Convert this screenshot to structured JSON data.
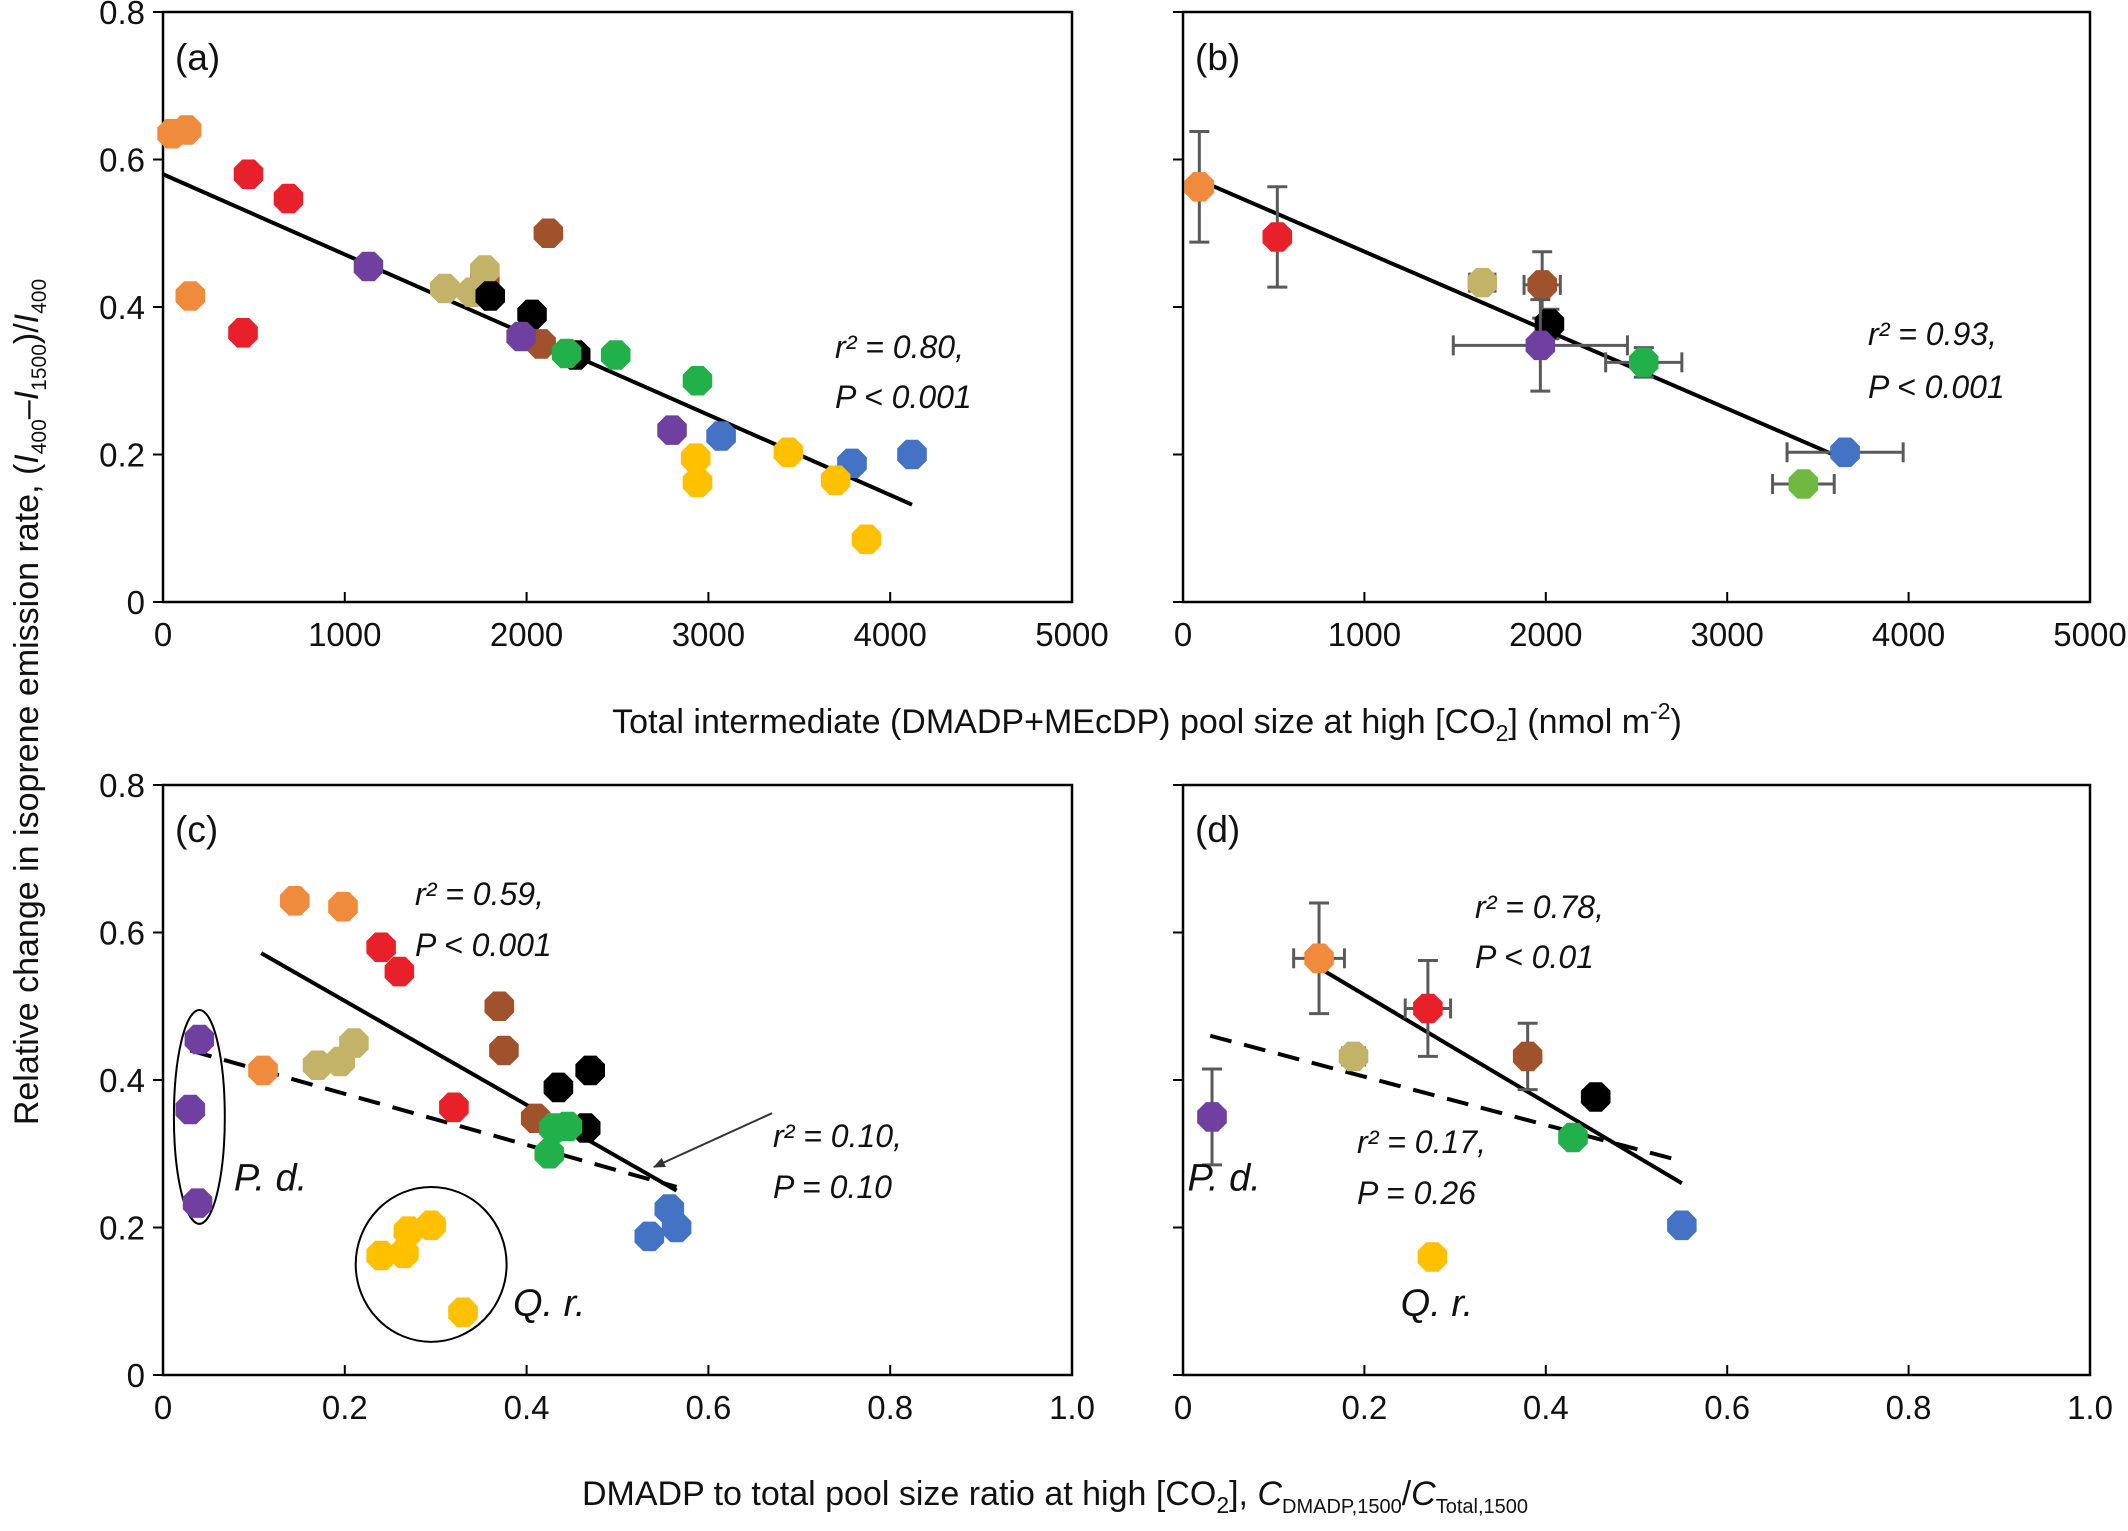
{
  "figure": {
    "ylabel": "Relative change in isoprene emission rate, (I400–I1500)/I400",
    "ylabel_parts": {
      "base": "Relative change in isoprene emission rate, (",
      "i1": "I",
      "s1": "400",
      "dash": "–",
      "i2": "I",
      "s2": "1500",
      "mid": ")/",
      "i3": "I",
      "s3": "400"
    },
    "xlabel_top": "Total intermediate (DMADP+MEcDP) pool size at high [CO2] (nmol m-2)",
    "xlabel_top_parts": {
      "a": "Total intermediate (DMADP+MEcDP) pool size at high [CO",
      "sub": "2",
      "b": "] (nmol m",
      "sup": "-2",
      "c": ")"
    },
    "xlabel_bottom": "DMADP to total pool size ratio at high [CO2], CDMADP,1500/CTotal,1500",
    "xlabel_bottom_parts": {
      "a": "DMADP to total pool size ratio at high [CO",
      "sub": "2",
      "b": "], ",
      "c1": "C",
      "s1": "DMADP,1500",
      "slash": "/",
      "c2": "C",
      "s2": "Total,1500"
    }
  },
  "colors": {
    "orange": "#F08A3C",
    "red": "#E8202A",
    "brown": "#A0522D",
    "olive": "#C2B368",
    "black": "#000000",
    "purple": "#7040A0",
    "green": "#22B04A",
    "lime": "#70B840",
    "blue": "#4472C4",
    "yellow": "#FFC000",
    "errorbar": "#5a5a5a"
  },
  "chart_data": [
    {
      "panel": "(a)",
      "type": "scatter",
      "xlim": [
        0,
        5000
      ],
      "ylim": [
        0,
        0.8
      ],
      "xticks": [
        "0",
        "1000",
        "2000",
        "3000",
        "4000",
        "5000"
      ],
      "yticks": [
        "0",
        "0.2",
        "0.4",
        "0.6",
        "0.8"
      ],
      "points": [
        {
          "x": 50,
          "y": 0.635,
          "color": "orange"
        },
        {
          "x": 130,
          "y": 0.64,
          "color": "orange"
        },
        {
          "x": 150,
          "y": 0.415,
          "color": "orange"
        },
        {
          "x": 470,
          "y": 0.58,
          "color": "red"
        },
        {
          "x": 690,
          "y": 0.547,
          "color": "red"
        },
        {
          "x": 440,
          "y": 0.365,
          "color": "red"
        },
        {
          "x": 2120,
          "y": 0.5,
          "color": "brown"
        },
        {
          "x": 1770,
          "y": 0.44,
          "color": "brown"
        },
        {
          "x": 2080,
          "y": 0.35,
          "color": "brown"
        },
        {
          "x": 1550,
          "y": 0.425,
          "color": "olive"
        },
        {
          "x": 1770,
          "y": 0.45,
          "color": "olive"
        },
        {
          "x": 1700,
          "y": 0.42,
          "color": "olive"
        },
        {
          "x": 1800,
          "y": 0.415,
          "color": "black"
        },
        {
          "x": 2030,
          "y": 0.39,
          "color": "black"
        },
        {
          "x": 2270,
          "y": 0.335,
          "color": "black"
        },
        {
          "x": 1130,
          "y": 0.455,
          "color": "purple"
        },
        {
          "x": 1970,
          "y": 0.36,
          "color": "purple"
        },
        {
          "x": 2800,
          "y": 0.233,
          "color": "purple"
        },
        {
          "x": 2220,
          "y": 0.337,
          "color": "green"
        },
        {
          "x": 2490,
          "y": 0.335,
          "color": "green"
        },
        {
          "x": 2940,
          "y": 0.3,
          "color": "green"
        },
        {
          "x": 3070,
          "y": 0.225,
          "color": "blue"
        },
        {
          "x": 3790,
          "y": 0.188,
          "color": "blue"
        },
        {
          "x": 4120,
          "y": 0.2,
          "color": "blue"
        },
        {
          "x": 2930,
          "y": 0.195,
          "color": "yellow"
        },
        {
          "x": 2940,
          "y": 0.162,
          "color": "yellow"
        },
        {
          "x": 3440,
          "y": 0.203,
          "color": "yellow"
        },
        {
          "x": 3700,
          "y": 0.165,
          "color": "yellow"
        },
        {
          "x": 3870,
          "y": 0.085,
          "color": "yellow"
        }
      ],
      "fits": [
        {
          "style": "solid",
          "x": [
            0,
            4120
          ],
          "y": [
            0.58,
            0.132
          ]
        }
      ],
      "annotations": [
        {
          "line1": "r² = 0.80,",
          "line2": "P < 0.001"
        }
      ]
    },
    {
      "panel": "(b)",
      "type": "scatter",
      "xlim": [
        0,
        5000
      ],
      "ylim": [
        0,
        0.8
      ],
      "xticks": [
        "0",
        "1000",
        "2000",
        "3000",
        "4000",
        "5000"
      ],
      "points": [
        {
          "x": 90,
          "y": 0.563,
          "color": "orange",
          "xerr": 0,
          "yerr": 0.075
        },
        {
          "x": 520,
          "y": 0.495,
          "color": "red",
          "xerr": 30,
          "yerr": 0.068
        },
        {
          "x": 1980,
          "y": 0.43,
          "color": "brown",
          "xerr": 100,
          "yerr": 0.045
        },
        {
          "x": 1650,
          "y": 0.433,
          "color": "olive",
          "xerr": 70,
          "yerr": 0.01
        },
        {
          "x": 2020,
          "y": 0.377,
          "color": "black",
          "xerr": 40,
          "yerr": 0.02
        },
        {
          "x": 1970,
          "y": 0.348,
          "color": "purple",
          "xerr": 480,
          "yerr": 0.062
        },
        {
          "x": 2540,
          "y": 0.325,
          "color": "green",
          "xerr": 210,
          "yerr": 0.02
        },
        {
          "x": 3650,
          "y": 0.203,
          "color": "blue",
          "xerr": 320,
          "yerr": 0.012
        },
        {
          "x": 3420,
          "y": 0.16,
          "color": "lime",
          "xerr": 170,
          "yerr": 0.012
        }
      ],
      "fits": [
        {
          "style": "solid",
          "x": [
            90,
            3650
          ],
          "y": [
            0.572,
            0.193
          ]
        }
      ],
      "annotations": [
        {
          "line1": "r² = 0.93,",
          "line2": "P < 0.001"
        }
      ]
    },
    {
      "panel": "(c)",
      "type": "scatter",
      "xlim": [
        0,
        1.0
      ],
      "ylim": [
        0,
        0.8
      ],
      "xticks": [
        "0",
        "0.2",
        "0.4",
        "0.6",
        "0.8",
        "1.0"
      ],
      "yticks": [
        "0",
        "0.2",
        "0.4",
        "0.6",
        "0.8"
      ],
      "points": [
        {
          "x": 0.145,
          "y": 0.643,
          "color": "orange"
        },
        {
          "x": 0.198,
          "y": 0.635,
          "color": "orange"
        },
        {
          "x": 0.11,
          "y": 0.413,
          "color": "orange"
        },
        {
          "x": 0.24,
          "y": 0.58,
          "color": "red"
        },
        {
          "x": 0.26,
          "y": 0.547,
          "color": "red"
        },
        {
          "x": 0.32,
          "y": 0.363,
          "color": "red"
        },
        {
          "x": 0.37,
          "y": 0.5,
          "color": "brown"
        },
        {
          "x": 0.375,
          "y": 0.44,
          "color": "brown"
        },
        {
          "x": 0.41,
          "y": 0.348,
          "color": "brown"
        },
        {
          "x": 0.17,
          "y": 0.42,
          "color": "olive"
        },
        {
          "x": 0.195,
          "y": 0.425,
          "color": "olive"
        },
        {
          "x": 0.21,
          "y": 0.45,
          "color": "olive"
        },
        {
          "x": 0.435,
          "y": 0.39,
          "color": "black"
        },
        {
          "x": 0.47,
          "y": 0.413,
          "color": "black"
        },
        {
          "x": 0.465,
          "y": 0.335,
          "color": "black"
        },
        {
          "x": 0.04,
          "y": 0.455,
          "color": "purple"
        },
        {
          "x": 0.03,
          "y": 0.36,
          "color": "purple"
        },
        {
          "x": 0.038,
          "y": 0.233,
          "color": "purple"
        },
        {
          "x": 0.425,
          "y": 0.3,
          "color": "green"
        },
        {
          "x": 0.43,
          "y": 0.335,
          "color": "green"
        },
        {
          "x": 0.445,
          "y": 0.337,
          "color": "green"
        },
        {
          "x": 0.535,
          "y": 0.188,
          "color": "blue"
        },
        {
          "x": 0.557,
          "y": 0.225,
          "color": "blue"
        },
        {
          "x": 0.565,
          "y": 0.2,
          "color": "blue"
        },
        {
          "x": 0.24,
          "y": 0.162,
          "color": "yellow"
        },
        {
          "x": 0.265,
          "y": 0.165,
          "color": "yellow"
        },
        {
          "x": 0.27,
          "y": 0.195,
          "color": "yellow"
        },
        {
          "x": 0.295,
          "y": 0.203,
          "color": "yellow"
        },
        {
          "x": 0.33,
          "y": 0.085,
          "color": "yellow"
        }
      ],
      "fits": [
        {
          "style": "solid",
          "x": [
            0.108,
            0.565
          ],
          "y": [
            0.572,
            0.25
          ]
        },
        {
          "style": "dashed",
          "x": [
            0.03,
            0.565
          ],
          "y": [
            0.44,
            0.255
          ]
        }
      ],
      "group_outlines": [
        {
          "shape": "ellipse",
          "cx": 0.04,
          "cy": 0.35,
          "rx": 0.028,
          "ry": 0.145
        },
        {
          "shape": "circle",
          "cx": 0.295,
          "cy": 0.15,
          "rx": 0.083,
          "ry": 0.105
        }
      ],
      "group_labels": [
        {
          "text": "P. d.",
          "x": 0.078,
          "y": 0.25
        },
        {
          "text": "Q. r.",
          "x": 0.385,
          "y": 0.08
        }
      ],
      "arrows": [
        {
          "from": [
            0.67,
            0.355
          ],
          "to": [
            0.54,
            0.282
          ]
        }
      ],
      "annotations": [
        {
          "line1": "r² = 0.59,",
          "line2": "P < 0.001"
        },
        {
          "line1": "r² = 0.10,",
          "line2": "P = 0.10"
        }
      ]
    },
    {
      "panel": "(d)",
      "type": "scatter",
      "xlim": [
        0,
        1.0
      ],
      "ylim": [
        0,
        0.8
      ],
      "xticks": [
        "0",
        "0.2",
        "0.4",
        "0.6",
        "0.8",
        "1.0"
      ],
      "points": [
        {
          "x": 0.15,
          "y": 0.565,
          "color": "orange",
          "xerr": 0.028,
          "yerr": 0.075
        },
        {
          "x": 0.27,
          "y": 0.497,
          "color": "red",
          "xerr": 0.025,
          "yerr": 0.065
        },
        {
          "x": 0.38,
          "y": 0.432,
          "color": "brown",
          "xerr": 0,
          "yerr": 0.045
        },
        {
          "x": 0.188,
          "y": 0.432,
          "color": "olive",
          "xerr": 0.012,
          "yerr": 0.01
        },
        {
          "x": 0.455,
          "y": 0.377,
          "color": "black",
          "xerr": 0,
          "yerr": 0
        },
        {
          "x": 0.032,
          "y": 0.35,
          "color": "purple",
          "xerr": 0,
          "yerr": 0.065
        },
        {
          "x": 0.43,
          "y": 0.322,
          "color": "green",
          "xerr": 0,
          "yerr": 0
        },
        {
          "x": 0.55,
          "y": 0.203,
          "color": "blue",
          "xerr": 0,
          "yerr": 0
        },
        {
          "x": 0.275,
          "y": 0.16,
          "color": "yellow",
          "xerr": 0,
          "yerr": 0
        }
      ],
      "fits": [
        {
          "style": "solid",
          "x": [
            0.15,
            0.55
          ],
          "y": [
            0.552,
            0.26
          ]
        },
        {
          "style": "dashed",
          "x": [
            0.03,
            0.55
          ],
          "y": [
            0.46,
            0.29
          ]
        }
      ],
      "group_labels": [
        {
          "text": "P. d.",
          "x": 0.005,
          "y": 0.25
        },
        {
          "text": "Q. r.",
          "x": 0.24,
          "y": 0.08
        }
      ],
      "annotations": [
        {
          "line1": "r² = 0.78,",
          "line2": "P < 0.01"
        },
        {
          "line1": "r² = 0.17,",
          "line2": "P = 0.26"
        }
      ]
    }
  ]
}
